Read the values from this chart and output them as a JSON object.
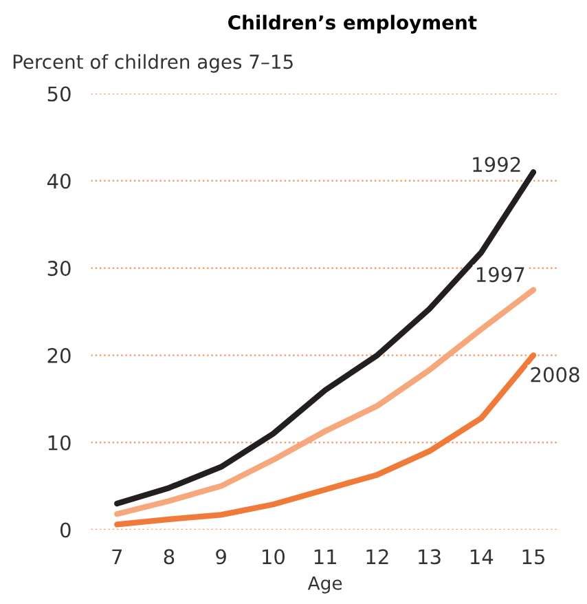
{
  "chart_data": {
    "type": "line",
    "title": "Children’s employment",
    "ylabel": "Percent of children ages 7–15",
    "xlabel": "Age",
    "x": [
      7,
      8,
      9,
      10,
      11,
      12,
      13,
      14,
      15
    ],
    "series": [
      {
        "name": "1992",
        "color": "#231f20",
        "values": [
          3,
          4.8,
          7.2,
          11,
          16,
          20,
          25.3,
          31.8,
          41
        ]
      },
      {
        "name": "1997",
        "color": "#f6a77c",
        "values": [
          1.8,
          3.3,
          5,
          8,
          11.3,
          14.2,
          18.3,
          23,
          27.5
        ]
      },
      {
        "name": "2008",
        "color": "#f07a3a",
        "values": [
          0.6,
          1.2,
          1.7,
          2.9,
          4.6,
          6.3,
          9,
          12.8,
          20
        ]
      }
    ],
    "xlim": [
      6.5,
      15.5
    ],
    "xticks": [
      7,
      8,
      9,
      10,
      11,
      12,
      13,
      14,
      15
    ],
    "ylim": [
      0,
      50
    ],
    "yticks": [
      0,
      10,
      20,
      30,
      40,
      50
    ],
    "grid": "y",
    "legend": false,
    "marker": "none",
    "line_style": "solid"
  }
}
